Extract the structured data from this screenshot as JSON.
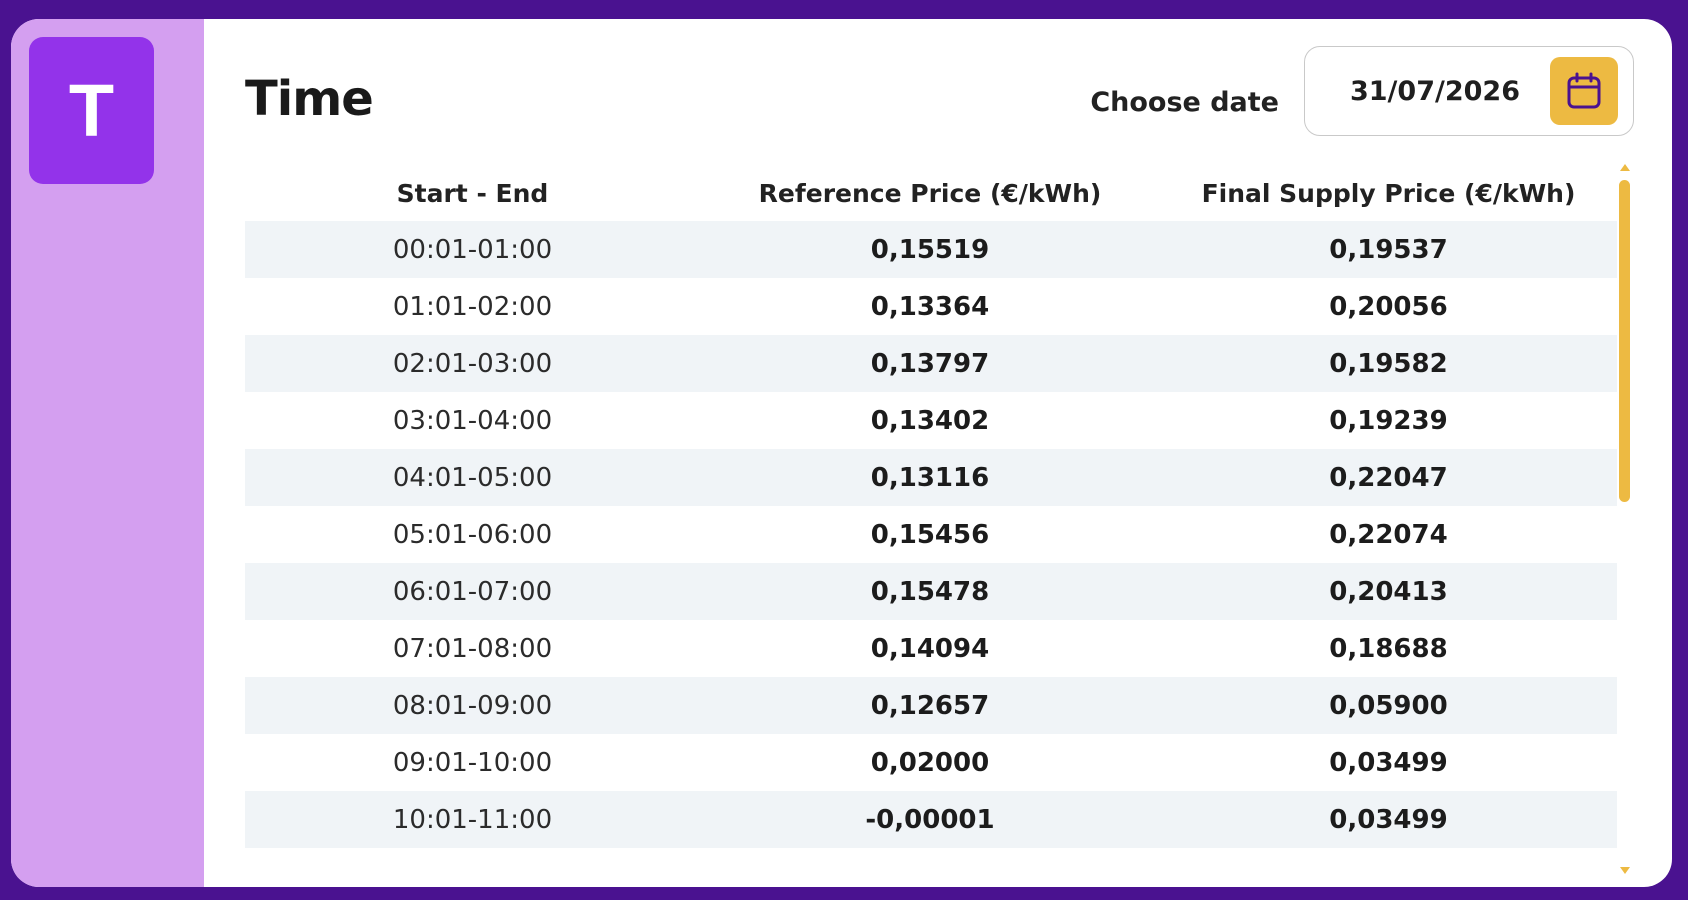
{
  "app": {
    "logo_letter": "T"
  },
  "header": {
    "title": "Time",
    "date_label": "Choose date",
    "date_value": "31/07/2026",
    "calendar_icon": "calendar-icon"
  },
  "colors": {
    "background": "#4a1290",
    "sidebar": "#d49ff0",
    "logo": "#9333ea",
    "accent": "#edba42",
    "row_stripe": "#f0f4f7"
  },
  "table": {
    "columns": [
      "Start - End",
      "Reference Price (€/kWh)",
      "Final Supply Price (€/kWh)"
    ],
    "rows": [
      [
        "00:01-01:00",
        "0,15519",
        "0,19537"
      ],
      [
        "01:01-02:00",
        "0,13364",
        "0,20056"
      ],
      [
        "02:01-03:00",
        "0,13797",
        "0,19582"
      ],
      [
        "03:01-04:00",
        "0,13402",
        "0,19239"
      ],
      [
        "04:01-05:00",
        "0,13116",
        "0,22047"
      ],
      [
        "05:01-06:00",
        "0,15456",
        "0,22074"
      ],
      [
        "06:01-07:00",
        "0,15478",
        "0,20413"
      ],
      [
        "07:01-08:00",
        "0,14094",
        "0,18688"
      ],
      [
        "08:01-09:00",
        "0,12657",
        "0,05900"
      ],
      [
        "09:01-10:00",
        "0,02000",
        "0,03499"
      ],
      [
        "10:01-11:00",
        "-0,00001",
        "0,03499"
      ]
    ]
  }
}
